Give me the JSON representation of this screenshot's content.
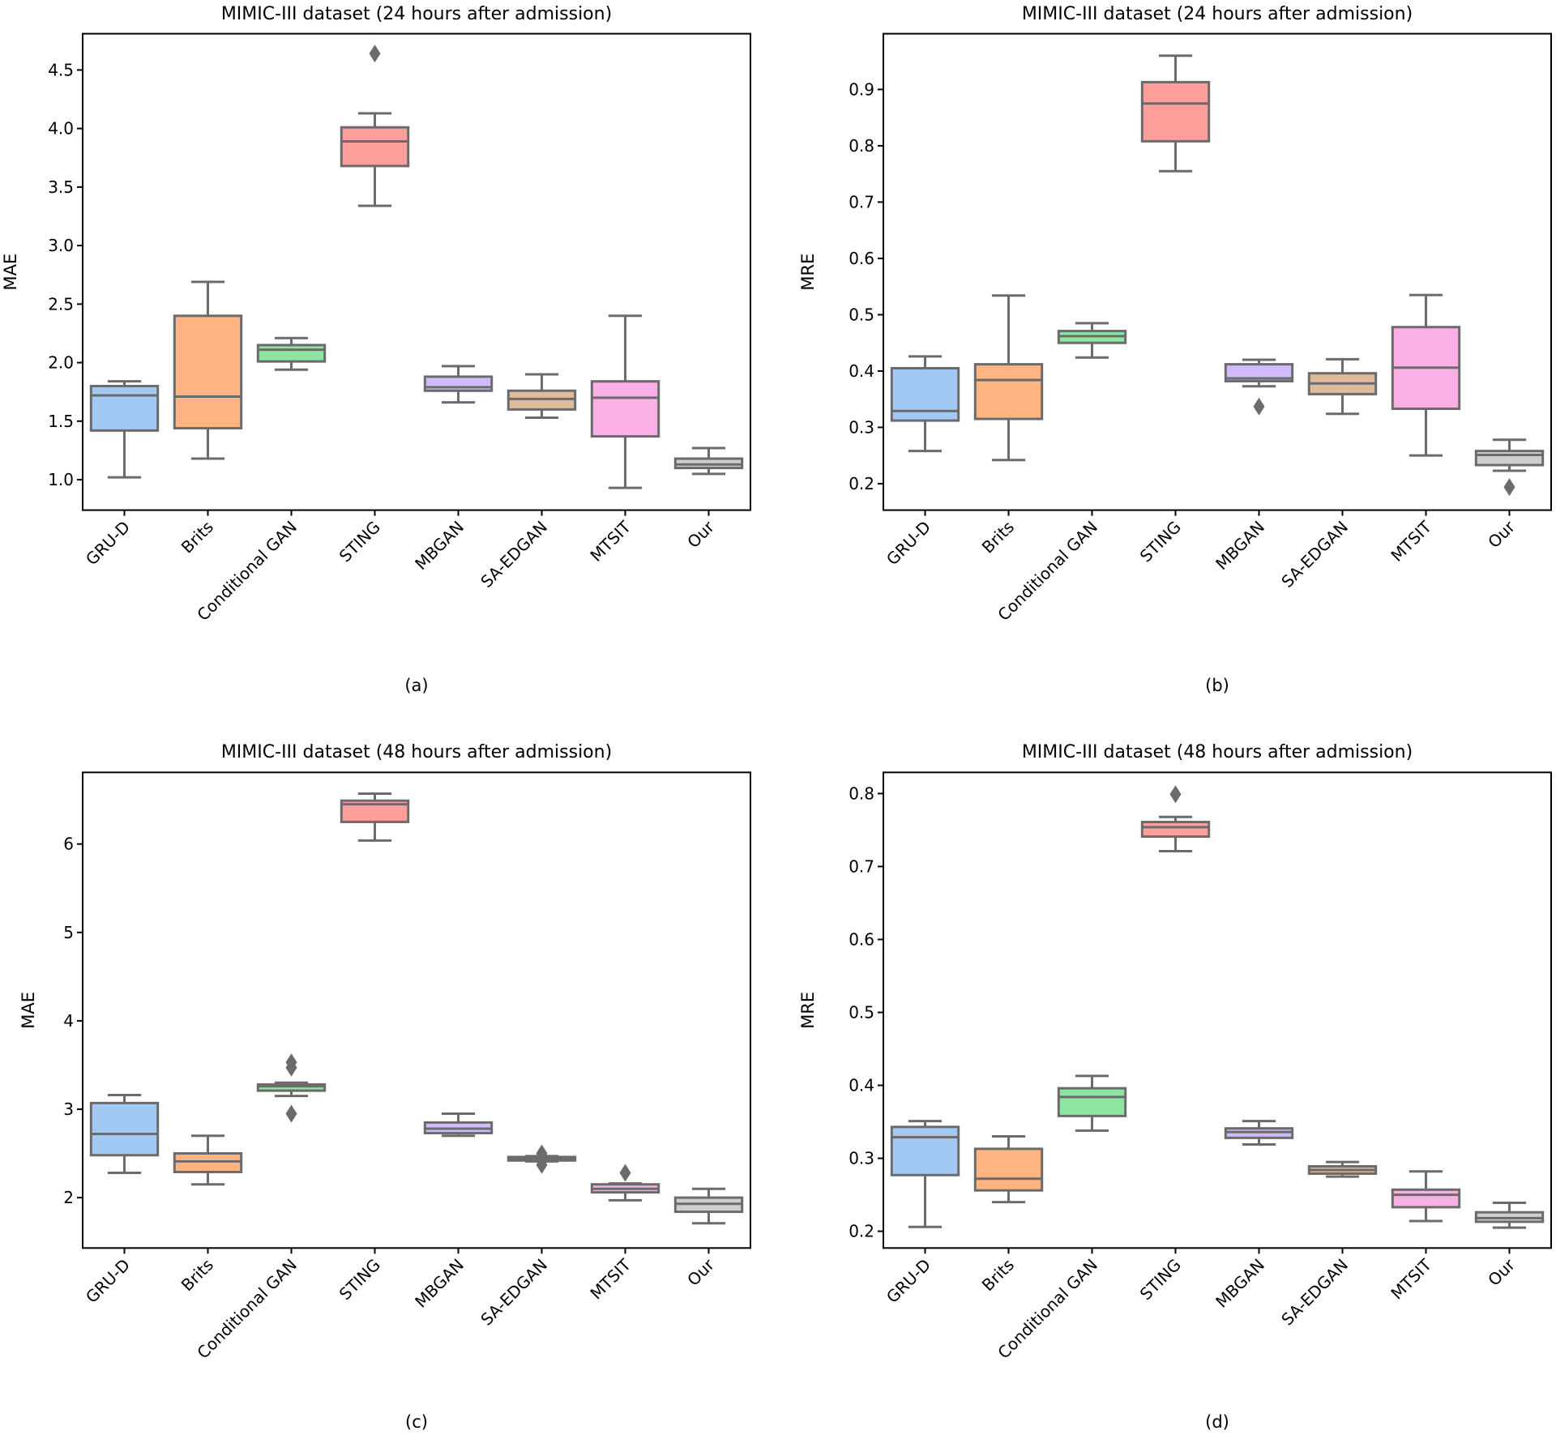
{
  "chart_data": [
    {
      "type": "box",
      "panel_caption": "(a)",
      "title": "MIMIC-III dataset (24 hours after admission)",
      "xlabel": "",
      "ylabel": "MAE",
      "ylim": [
        0.74,
        4.81
      ],
      "yticks": [
        1.0,
        1.5,
        2.0,
        2.5,
        3.0,
        3.5,
        4.0,
        4.5
      ],
      "ytick_labels": [
        "1.0",
        "1.5",
        "2.0",
        "2.5",
        "3.0",
        "3.5",
        "4.0",
        "4.5"
      ],
      "grid": false,
      "categories": [
        "GRU-D",
        "Brits",
        "Conditional GAN",
        "STING",
        "MBGAN",
        "SA-EDGAN",
        "MTSIT",
        "Our"
      ],
      "boxes": [
        {
          "whislo": 1.02,
          "q1": 1.42,
          "med": 1.72,
          "q3": 1.8,
          "whishi": 1.84,
          "fliers": []
        },
        {
          "whislo": 1.18,
          "q1": 1.44,
          "med": 1.71,
          "q3": 2.4,
          "whishi": 2.69,
          "fliers": []
        },
        {
          "whislo": 1.94,
          "q1": 2.01,
          "med": 2.11,
          "q3": 2.15,
          "whishi": 2.21,
          "fliers": []
        },
        {
          "whislo": 3.34,
          "q1": 3.68,
          "med": 3.89,
          "q3": 4.01,
          "whishi": 4.13,
          "fliers": [
            4.64
          ]
        },
        {
          "whislo": 1.66,
          "q1": 1.76,
          "med": 1.79,
          "q3": 1.88,
          "whishi": 1.97,
          "fliers": []
        },
        {
          "whislo": 1.53,
          "q1": 1.6,
          "med": 1.69,
          "q3": 1.76,
          "whishi": 1.9,
          "fliers": []
        },
        {
          "whislo": 0.93,
          "q1": 1.37,
          "med": 1.7,
          "q3": 1.84,
          "whishi": 2.4,
          "fliers": []
        },
        {
          "whislo": 1.05,
          "q1": 1.1,
          "med": 1.13,
          "q3": 1.18,
          "whishi": 1.27,
          "fliers": []
        }
      ]
    },
    {
      "type": "box",
      "panel_caption": "(b)",
      "title": "MIMIC-III dataset (24 hours after admission)",
      "xlabel": "",
      "ylabel": "MRE",
      "ylim": [
        0.153,
        0.999
      ],
      "yticks": [
        0.2,
        0.3,
        0.4,
        0.5,
        0.6,
        0.7,
        0.8,
        0.9
      ],
      "ytick_labels": [
        "0.2",
        "0.3",
        "0.4",
        "0.5",
        "0.6",
        "0.7",
        "0.8",
        "0.9"
      ],
      "grid": false,
      "categories": [
        "GRU-D",
        "Brits",
        "Conditional GAN",
        "STING",
        "MBGAN",
        "SA-EDGAN",
        "MTSIT",
        "Our"
      ],
      "boxes": [
        {
          "whislo": 0.258,
          "q1": 0.312,
          "med": 0.329,
          "q3": 0.405,
          "whishi": 0.426,
          "fliers": []
        },
        {
          "whislo": 0.242,
          "q1": 0.315,
          "med": 0.384,
          "q3": 0.412,
          "whishi": 0.534,
          "fliers": []
        },
        {
          "whislo": 0.424,
          "q1": 0.45,
          "med": 0.462,
          "q3": 0.471,
          "whishi": 0.485,
          "fliers": []
        },
        {
          "whislo": 0.755,
          "q1": 0.808,
          "med": 0.875,
          "q3": 0.913,
          "whishi": 0.96,
          "fliers": []
        },
        {
          "whislo": 0.373,
          "q1": 0.382,
          "med": 0.387,
          "q3": 0.412,
          "whishi": 0.42,
          "fliers": [
            0.337
          ]
        },
        {
          "whislo": 0.324,
          "q1": 0.359,
          "med": 0.378,
          "q3": 0.396,
          "whishi": 0.421,
          "fliers": []
        },
        {
          "whislo": 0.25,
          "q1": 0.333,
          "med": 0.406,
          "q3": 0.478,
          "whishi": 0.535,
          "fliers": []
        },
        {
          "whislo": 0.223,
          "q1": 0.233,
          "med": 0.251,
          "q3": 0.258,
          "whishi": 0.278,
          "fliers": [
            0.194
          ]
        }
      ]
    },
    {
      "type": "box",
      "panel_caption": "(c)",
      "title": "MIMIC-III dataset (48 hours after admission)",
      "xlabel": "",
      "ylabel": "MAE",
      "ylim": [
        1.43,
        6.81
      ],
      "yticks": [
        2,
        3,
        4,
        5,
        6
      ],
      "ytick_labels": [
        "2",
        "3",
        "4",
        "5",
        "6"
      ],
      "grid": false,
      "categories": [
        "GRU-D",
        "Brits",
        "Conditional GAN",
        "STING",
        "MBGAN",
        "SA-EDGAN",
        "MTSIT",
        "Our"
      ],
      "boxes": [
        {
          "whislo": 2.28,
          "q1": 2.48,
          "med": 2.72,
          "q3": 3.07,
          "whishi": 3.16,
          "fliers": []
        },
        {
          "whislo": 2.15,
          "q1": 2.29,
          "med": 2.41,
          "q3": 2.5,
          "whishi": 2.7,
          "fliers": []
        },
        {
          "whislo": 3.15,
          "q1": 3.21,
          "med": 3.26,
          "q3": 3.28,
          "whishi": 3.3,
          "fliers": [
            3.53,
            3.47,
            2.95
          ]
        },
        {
          "whislo": 6.04,
          "q1": 6.25,
          "med": 6.45,
          "q3": 6.49,
          "whishi": 6.57,
          "fliers": []
        },
        {
          "whislo": 2.7,
          "q1": 2.73,
          "med": 2.78,
          "q3": 2.85,
          "whishi": 2.95,
          "fliers": []
        },
        {
          "whislo": 2.41,
          "q1": 2.42,
          "med": 2.44,
          "q3": 2.46,
          "whishi": 2.47,
          "fliers": [
            2.5,
            2.37
          ]
        },
        {
          "whislo": 1.97,
          "q1": 2.06,
          "med": 2.1,
          "q3": 2.15,
          "whishi": 2.16,
          "fliers": [
            2.28
          ]
        },
        {
          "whislo": 1.71,
          "q1": 1.84,
          "med": 1.93,
          "q3": 2.0,
          "whishi": 2.1,
          "fliers": []
        }
      ]
    },
    {
      "type": "box",
      "panel_caption": "(d)",
      "title": "MIMIC-III dataset (48 hours after admission)",
      "xlabel": "",
      "ylabel": "MRE",
      "ylim": [
        0.177,
        0.829
      ],
      "yticks": [
        0.2,
        0.3,
        0.4,
        0.5,
        0.6,
        0.7,
        0.8
      ],
      "ytick_labels": [
        "0.2",
        "0.3",
        "0.4",
        "0.5",
        "0.6",
        "0.7",
        "0.8"
      ],
      "grid": false,
      "categories": [
        "GRU-D",
        "Brits",
        "Conditional GAN",
        "STING",
        "MBGAN",
        "SA-EDGAN",
        "MTSIT",
        "Our"
      ],
      "boxes": [
        {
          "whislo": 0.206,
          "q1": 0.277,
          "med": 0.329,
          "q3": 0.343,
          "whishi": 0.351,
          "fliers": []
        },
        {
          "whislo": 0.24,
          "q1": 0.256,
          "med": 0.272,
          "q3": 0.313,
          "whishi": 0.33,
          "fliers": []
        },
        {
          "whislo": 0.338,
          "q1": 0.358,
          "med": 0.384,
          "q3": 0.396,
          "whishi": 0.413,
          "fliers": []
        },
        {
          "whislo": 0.721,
          "q1": 0.741,
          "med": 0.754,
          "q3": 0.761,
          "whishi": 0.768,
          "fliers": [
            0.799
          ]
        },
        {
          "whislo": 0.319,
          "q1": 0.328,
          "med": 0.336,
          "q3": 0.341,
          "whishi": 0.351,
          "fliers": []
        },
        {
          "whislo": 0.275,
          "q1": 0.279,
          "med": 0.284,
          "q3": 0.289,
          "whishi": 0.295,
          "fliers": []
        },
        {
          "whislo": 0.214,
          "q1": 0.233,
          "med": 0.25,
          "q3": 0.257,
          "whishi": 0.282,
          "fliers": []
        },
        {
          "whislo": 0.205,
          "q1": 0.213,
          "med": 0.218,
          "q3": 0.226,
          "whishi": 0.239,
          "fliers": []
        }
      ]
    }
  ],
  "palette": {
    "box_fills": [
      "#a1c9f4",
      "#ffb482",
      "#8de5a1",
      "#ff9f9b",
      "#d0bbff",
      "#debb9b",
      "#fab0e4",
      "#cfcfcf"
    ],
    "line_color": "#6b6b6b",
    "axis_color": "#000000"
  }
}
